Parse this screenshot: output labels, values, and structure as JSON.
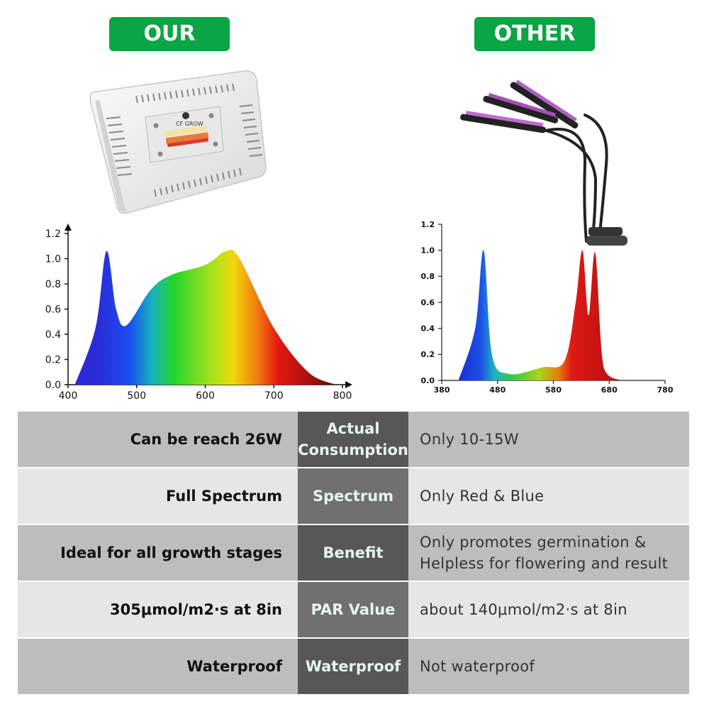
{
  "badges": {
    "ours": "OUR",
    "other": "OTHER"
  },
  "product": {
    "brand": "CF GROW"
  },
  "our_chart": {
    "y_ticks": [
      "1.2",
      "1.0",
      "0.8",
      "0.6",
      "0.4",
      "0.2",
      "0.0"
    ],
    "x_ticks": [
      "400",
      "500",
      "600",
      "700",
      "800"
    ]
  },
  "other_chart": {
    "y_ticks": [
      "1.2",
      "1.0",
      "0.8",
      "0.6",
      "0.4",
      "0.2",
      "0.0"
    ],
    "x_ticks": [
      "380",
      "480",
      "580",
      "680",
      "780"
    ]
  },
  "chart_data": [
    {
      "type": "area",
      "series": [
        {
          "values_x": [
            410,
            440,
            456,
            470,
            485,
            520,
            550,
            600,
            630,
            650,
            700,
            750,
            790
          ],
          "values_y": [
            0.0,
            0.45,
            1.06,
            0.6,
            0.47,
            0.75,
            0.87,
            0.95,
            1.06,
            1.0,
            0.45,
            0.1,
            0.0
          ]
        }
      ],
      "xlim": [
        400,
        800
      ],
      "ylim": [
        0,
        1.2
      ]
    },
    {
      "type": "area",
      "series": [
        {
          "values_x": [
            410,
            440,
            455,
            470,
            500,
            560,
            600,
            620,
            632,
            643,
            655,
            670,
            700
          ],
          "values_y": [
            0.0,
            0.4,
            1.0,
            0.2,
            0.05,
            0.1,
            0.15,
            0.6,
            1.0,
            0.5,
            0.98,
            0.1,
            0.0
          ]
        }
      ],
      "xlim": [
        380,
        780
      ],
      "ylim": [
        0,
        1.2
      ]
    }
  ],
  "comparison": [
    {
      "ours": "Can be reach 26W",
      "feature": "Actual Consumption",
      "other": "Only 10-15W"
    },
    {
      "ours": "Full Spectrum",
      "feature": "Spectrum",
      "other": "Only Red & Blue"
    },
    {
      "ours": "Ideal for all growth stages",
      "feature": "Benefit",
      "other": "Only promotes germination & Helpless for flowering and result"
    },
    {
      "ours": "305μmol/m2·s at 8in",
      "feature": "PAR Value",
      "other": "about 140μmol/m2·s at 8in"
    },
    {
      "ours": "Waterproof",
      "feature": "Waterproof",
      "other": "Not waterproof"
    }
  ]
}
